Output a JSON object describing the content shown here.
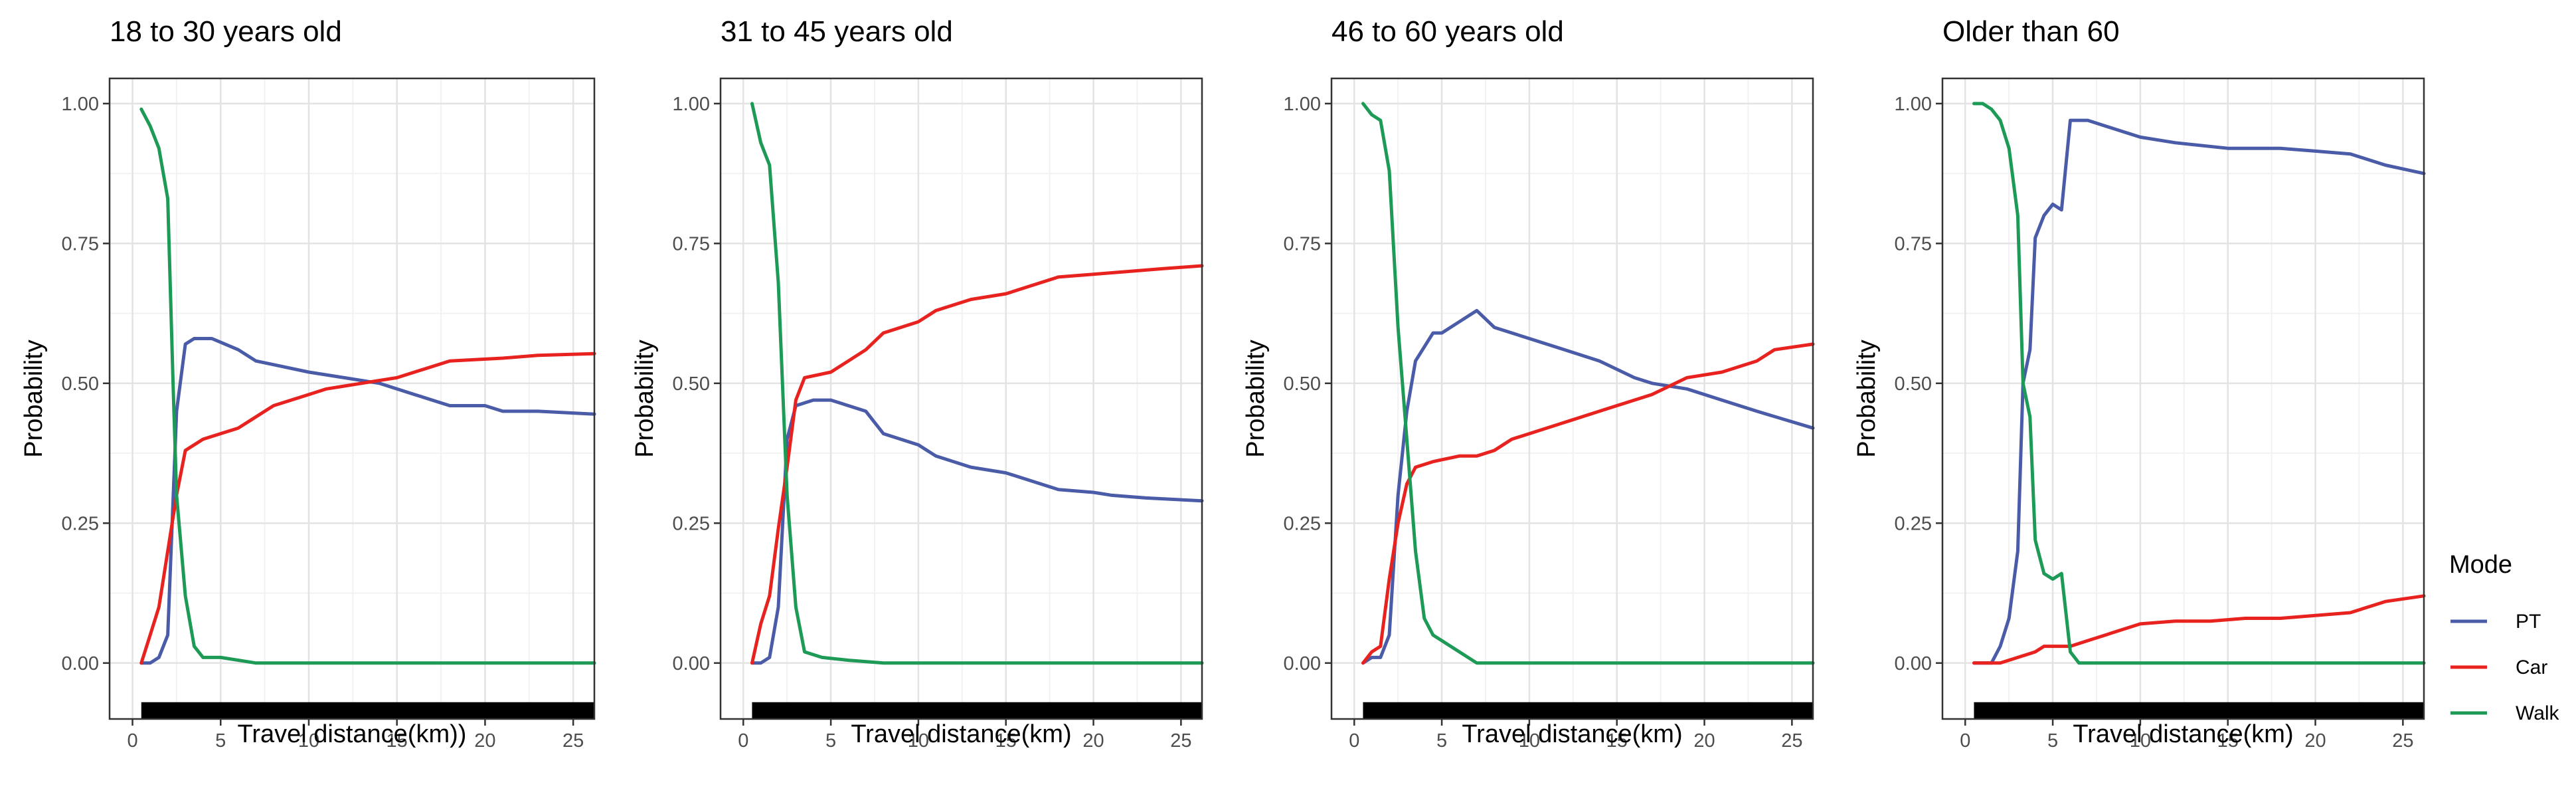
{
  "chart_data": [
    {
      "type": "line",
      "title": "18 to 30 years old",
      "xlabel": "Travel distance(km))",
      "ylabel": "Probability",
      "xlim": [
        -1.3,
        26.2
      ],
      "ylim": [
        -0.1,
        1.045
      ],
      "xticks": [
        0,
        5,
        10,
        15,
        20,
        25
      ],
      "yticks": [
        0,
        0.25,
        0.5,
        0.75,
        1.0
      ],
      "ytick_labels": [
        "0.00",
        "0.25",
        "0.50",
        "0.75",
        "1.00"
      ],
      "rug": [
        0.5,
        26.2
      ],
      "series": [
        {
          "name": "PT",
          "color": "#4a5ba8",
          "points": [
            [
              0.5,
              0.0
            ],
            [
              1.0,
              0.0
            ],
            [
              1.5,
              0.01
            ],
            [
              2.0,
              0.05
            ],
            [
              2.5,
              0.45
            ],
            [
              3.0,
              0.57
            ],
            [
              3.5,
              0.58
            ],
            [
              4.5,
              0.58
            ],
            [
              6.0,
              0.56
            ],
            [
              7.0,
              0.54
            ],
            [
              8.5,
              0.53
            ],
            [
              10.0,
              0.52
            ],
            [
              12.0,
              0.51
            ],
            [
              14.0,
              0.5
            ],
            [
              16.0,
              0.48
            ],
            [
              17.0,
              0.47
            ],
            [
              18.0,
              0.46
            ],
            [
              20.0,
              0.46
            ],
            [
              21.0,
              0.45
            ],
            [
              23.0,
              0.45
            ],
            [
              26.2,
              0.445
            ]
          ]
        },
        {
          "name": "Car",
          "color": "#e8231f",
          "points": [
            [
              0.5,
              0.0
            ],
            [
              1.0,
              0.05
            ],
            [
              1.5,
              0.1
            ],
            [
              2.0,
              0.2
            ],
            [
              2.5,
              0.3
            ],
            [
              3.0,
              0.38
            ],
            [
              4.0,
              0.4
            ],
            [
              5.0,
              0.41
            ],
            [
              6.0,
              0.42
            ],
            [
              7.0,
              0.44
            ],
            [
              8.0,
              0.46
            ],
            [
              9.0,
              0.47
            ],
            [
              10.0,
              0.48
            ],
            [
              11.0,
              0.49
            ],
            [
              13.0,
              0.5
            ],
            [
              15.0,
              0.51
            ],
            [
              17.0,
              0.53
            ],
            [
              18.0,
              0.54
            ],
            [
              21.0,
              0.545
            ],
            [
              23.0,
              0.55
            ],
            [
              26.2,
              0.553
            ]
          ]
        },
        {
          "name": "Walk",
          "color": "#1e9a57",
          "points": [
            [
              0.5,
              0.99
            ],
            [
              1.0,
              0.96
            ],
            [
              1.5,
              0.92
            ],
            [
              2.0,
              0.83
            ],
            [
              2.3,
              0.5
            ],
            [
              2.5,
              0.3
            ],
            [
              3.0,
              0.12
            ],
            [
              3.5,
              0.03
            ],
            [
              4.0,
              0.01
            ],
            [
              5.0,
              0.01
            ],
            [
              7.0,
              0.0
            ],
            [
              26.2,
              0.0
            ]
          ]
        }
      ]
    },
    {
      "type": "line",
      "title": "31 to 45 years old",
      "xlabel": "Travel distance(km)",
      "ylabel": "Probability",
      "xlim": [
        -1.3,
        26.2
      ],
      "ylim": [
        -0.1,
        1.045
      ],
      "xticks": [
        0,
        5,
        10,
        15,
        20,
        25
      ],
      "yticks": [
        0,
        0.25,
        0.5,
        0.75,
        1.0
      ],
      "ytick_labels": [
        "0.00",
        "0.25",
        "0.50",
        "0.75",
        "1.00"
      ],
      "rug": [
        0.5,
        26.2
      ],
      "series": [
        {
          "name": "PT",
          "color": "#4a5ba8",
          "points": [
            [
              0.5,
              0.0
            ],
            [
              1.0,
              0.0
            ],
            [
              1.5,
              0.01
            ],
            [
              2.0,
              0.1
            ],
            [
              2.5,
              0.4
            ],
            [
              3.0,
              0.46
            ],
            [
              4.0,
              0.47
            ],
            [
              5.0,
              0.47
            ],
            [
              6.0,
              0.46
            ],
            [
              7.0,
              0.45
            ],
            [
              8.0,
              0.41
            ],
            [
              10.0,
              0.39
            ],
            [
              11.0,
              0.37
            ],
            [
              13.0,
              0.35
            ],
            [
              15.0,
              0.34
            ],
            [
              17.0,
              0.32
            ],
            [
              18.0,
              0.31
            ],
            [
              20.0,
              0.305
            ],
            [
              21.0,
              0.3
            ],
            [
              23.0,
              0.295
            ],
            [
              26.2,
              0.29
            ]
          ]
        },
        {
          "name": "Car",
          "color": "#e8231f",
          "points": [
            [
              0.5,
              0.0
            ],
            [
              1.0,
              0.07
            ],
            [
              1.5,
              0.12
            ],
            [
              2.0,
              0.24
            ],
            [
              2.5,
              0.35
            ],
            [
              3.0,
              0.47
            ],
            [
              3.5,
              0.51
            ],
            [
              5.0,
              0.52
            ],
            [
              6.0,
              0.54
            ],
            [
              7.0,
              0.56
            ],
            [
              8.0,
              0.59
            ],
            [
              10.0,
              0.61
            ],
            [
              11.0,
              0.63
            ],
            [
              13.0,
              0.65
            ],
            [
              15.0,
              0.66
            ],
            [
              17.0,
              0.68
            ],
            [
              18.0,
              0.69
            ],
            [
              20.0,
              0.695
            ],
            [
              22.0,
              0.7
            ],
            [
              24.0,
              0.705
            ],
            [
              26.2,
              0.71
            ]
          ]
        },
        {
          "name": "Walk",
          "color": "#1e9a57",
          "points": [
            [
              0.5,
              1.0
            ],
            [
              1.0,
              0.93
            ],
            [
              1.5,
              0.89
            ],
            [
              2.0,
              0.68
            ],
            [
              2.5,
              0.3
            ],
            [
              3.0,
              0.1
            ],
            [
              3.5,
              0.02
            ],
            [
              4.5,
              0.01
            ],
            [
              6.0,
              0.005
            ],
            [
              8.0,
              0.0
            ],
            [
              26.2,
              0.0
            ]
          ]
        }
      ]
    },
    {
      "type": "line",
      "title": "46 to 60 years old",
      "xlabel": "Travel distance(km)",
      "ylabel": "Probability",
      "xlim": [
        -1.3,
        26.2
      ],
      "ylim": [
        -0.1,
        1.045
      ],
      "xticks": [
        0,
        5,
        10,
        15,
        20,
        25
      ],
      "yticks": [
        0,
        0.25,
        0.5,
        0.75,
        1.0
      ],
      "ytick_labels": [
        "0.00",
        "0.25",
        "0.50",
        "0.75",
        "1.00"
      ],
      "rug": [
        0.5,
        26.2
      ],
      "series": [
        {
          "name": "PT",
          "color": "#4a5ba8",
          "points": [
            [
              0.5,
              0.0
            ],
            [
              1.0,
              0.01
            ],
            [
              1.5,
              0.01
            ],
            [
              2.0,
              0.05
            ],
            [
              2.5,
              0.3
            ],
            [
              3.0,
              0.45
            ],
            [
              3.5,
              0.54
            ],
            [
              4.5,
              0.59
            ],
            [
              5.0,
              0.59
            ],
            [
              6.0,
              0.61
            ],
            [
              7.0,
              0.63
            ],
            [
              8.0,
              0.6
            ],
            [
              10.0,
              0.58
            ],
            [
              12.0,
              0.56
            ],
            [
              14.0,
              0.54
            ],
            [
              16.0,
              0.51
            ],
            [
              17.0,
              0.5
            ],
            [
              19.0,
              0.49
            ],
            [
              21.0,
              0.47
            ],
            [
              23.0,
              0.45
            ],
            [
              26.2,
              0.42
            ]
          ]
        },
        {
          "name": "Car",
          "color": "#e8231f",
          "points": [
            [
              0.5,
              0.0
            ],
            [
              1.0,
              0.02
            ],
            [
              1.5,
              0.03
            ],
            [
              2.0,
              0.15
            ],
            [
              2.5,
              0.25
            ],
            [
              3.0,
              0.32
            ],
            [
              3.5,
              0.35
            ],
            [
              4.5,
              0.36
            ],
            [
              6.0,
              0.37
            ],
            [
              7.0,
              0.37
            ],
            [
              8.0,
              0.38
            ],
            [
              9.0,
              0.4
            ],
            [
              10.0,
              0.41
            ],
            [
              12.0,
              0.43
            ],
            [
              14.0,
              0.45
            ],
            [
              16.0,
              0.47
            ],
            [
              17.0,
              0.48
            ],
            [
              19.0,
              0.51
            ],
            [
              21.0,
              0.52
            ],
            [
              23.0,
              0.54
            ],
            [
              24.0,
              0.56
            ],
            [
              26.2,
              0.57
            ]
          ]
        },
        {
          "name": "Walk",
          "color": "#1e9a57",
          "points": [
            [
              0.5,
              1.0
            ],
            [
              1.0,
              0.98
            ],
            [
              1.5,
              0.97
            ],
            [
              2.0,
              0.88
            ],
            [
              2.5,
              0.6
            ],
            [
              3.0,
              0.4
            ],
            [
              3.5,
              0.2
            ],
            [
              4.0,
              0.08
            ],
            [
              4.5,
              0.05
            ],
            [
              5.0,
              0.04
            ],
            [
              6.0,
              0.02
            ],
            [
              7.0,
              0.0
            ],
            [
              26.2,
              0.0
            ]
          ]
        }
      ]
    },
    {
      "type": "line",
      "title": "Older than 60",
      "xlabel": "Travel distance(km)",
      "ylabel": "Probability",
      "xlim": [
        -1.3,
        26.2
      ],
      "ylim": [
        -0.1,
        1.045
      ],
      "xticks": [
        0,
        5,
        10,
        15,
        20,
        25
      ],
      "yticks": [
        0,
        0.25,
        0.5,
        0.75,
        1.0
      ],
      "ytick_labels": [
        "0.00",
        "0.25",
        "0.50",
        "0.75",
        "1.00"
      ],
      "rug": [
        0.5,
        26.2
      ],
      "series": [
        {
          "name": "PT",
          "color": "#4a5ba8",
          "points": [
            [
              0.5,
              0.0
            ],
            [
              1.0,
              0.0
            ],
            [
              1.5,
              0.0
            ],
            [
              2.0,
              0.03
            ],
            [
              2.5,
              0.08
            ],
            [
              3.0,
              0.2
            ],
            [
              3.3,
              0.5
            ],
            [
              3.7,
              0.56
            ],
            [
              4.0,
              0.76
            ],
            [
              4.5,
              0.8
            ],
            [
              5.0,
              0.82
            ],
            [
              5.5,
              0.81
            ],
            [
              6.0,
              0.97
            ],
            [
              7.0,
              0.97
            ],
            [
              8.0,
              0.96
            ],
            [
              9.0,
              0.95
            ],
            [
              10.0,
              0.94
            ],
            [
              12.0,
              0.93
            ],
            [
              15.0,
              0.92
            ],
            [
              18.0,
              0.92
            ],
            [
              20.0,
              0.915
            ],
            [
              22.0,
              0.91
            ],
            [
              24.0,
              0.89
            ],
            [
              26.2,
              0.875
            ]
          ]
        },
        {
          "name": "Car",
          "color": "#e8231f",
          "points": [
            [
              0.5,
              0.0
            ],
            [
              1.0,
              0.0
            ],
            [
              2.0,
              0.0
            ],
            [
              3.0,
              0.01
            ],
            [
              4.0,
              0.02
            ],
            [
              4.5,
              0.03
            ],
            [
              6.0,
              0.03
            ],
            [
              7.0,
              0.04
            ],
            [
              8.0,
              0.05
            ],
            [
              9.0,
              0.06
            ],
            [
              10.0,
              0.07
            ],
            [
              12.0,
              0.075
            ],
            [
              14.0,
              0.075
            ],
            [
              16.0,
              0.08
            ],
            [
              18.0,
              0.08
            ],
            [
              20.0,
              0.085
            ],
            [
              22.0,
              0.09
            ],
            [
              23.0,
              0.1
            ],
            [
              24.0,
              0.11
            ],
            [
              26.2,
              0.12
            ]
          ]
        },
        {
          "name": "Walk",
          "color": "#1e9a57",
          "points": [
            [
              0.5,
              1.0
            ],
            [
              1.0,
              1.0
            ],
            [
              1.5,
              0.99
            ],
            [
              2.0,
              0.97
            ],
            [
              2.5,
              0.92
            ],
            [
              3.0,
              0.8
            ],
            [
              3.3,
              0.5
            ],
            [
              3.7,
              0.44
            ],
            [
              4.0,
              0.22
            ],
            [
              4.5,
              0.16
            ],
            [
              5.0,
              0.15
            ],
            [
              5.5,
              0.16
            ],
            [
              6.0,
              0.02
            ],
            [
              6.5,
              0.0
            ],
            [
              26.2,
              0.0
            ]
          ]
        }
      ]
    }
  ],
  "legend": {
    "title": "Mode",
    "items": [
      {
        "label": "PT",
        "color": "#4a5ba8"
      },
      {
        "label": "Car",
        "color": "#e8231f"
      },
      {
        "label": "Walk",
        "color": "#1e9a57"
      }
    ]
  }
}
